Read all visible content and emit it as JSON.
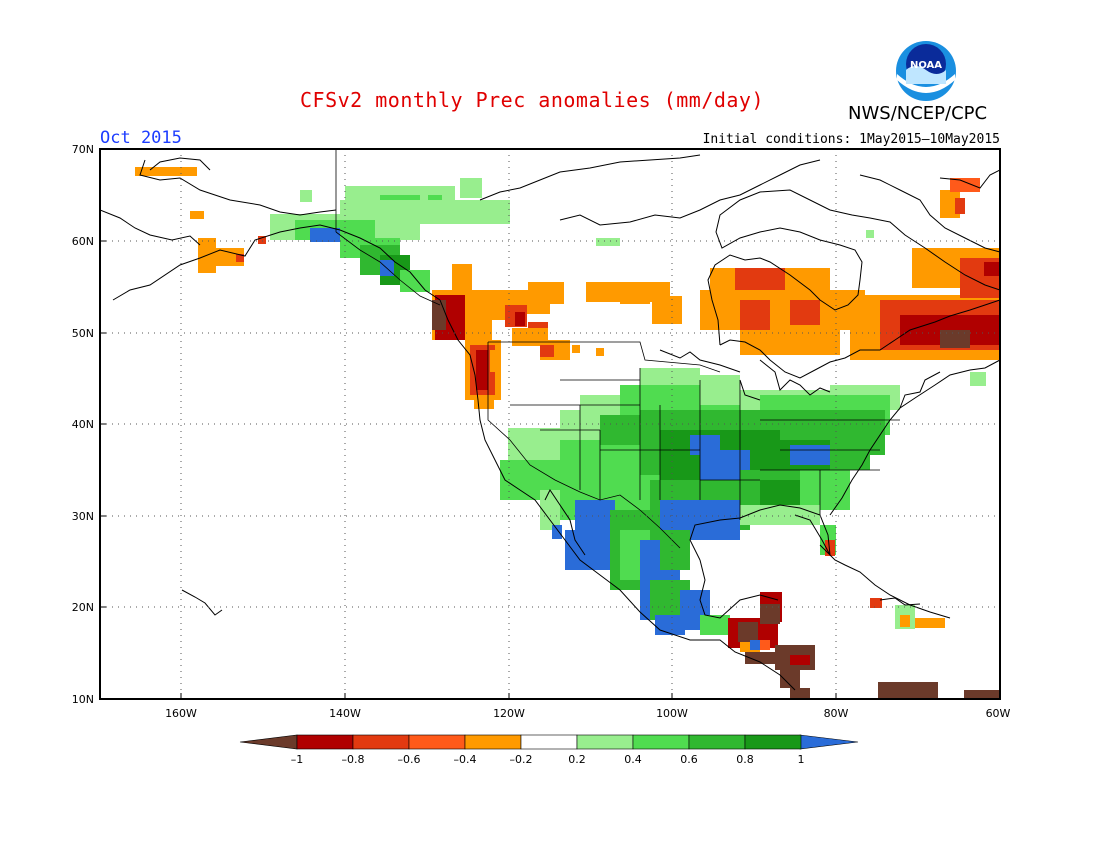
{
  "title": "CFSv2 monthly Prec anomalies (mm/day)",
  "period": "Oct 2015",
  "initial_conditions": "Initial conditions: 1May2015–10May2015",
  "agency": "NWS/NCEP/CPC",
  "logo_text": "NOAA",
  "colors": {
    "brown": "#6b3a2a",
    "darkred": "#b00000",
    "red": "#e23a10",
    "orangered": "#ff5a1a",
    "orange": "#ff9a00",
    "white": "#ffffff",
    "lightgreen": "#98ee8e",
    "green": "#50dc50",
    "midgreen": "#30b830",
    "darkgreen": "#189818",
    "blue": "#2a6cd8"
  },
  "map": {
    "lat_labels": [
      "70N",
      "60N",
      "50N",
      "40N",
      "30N",
      "20N",
      "10N"
    ],
    "lon_labels": [
      "160W",
      "140W",
      "120W",
      "100W",
      "80W",
      "60W"
    ]
  },
  "colorbar": {
    "labels": [
      "–1",
      "–0.8",
      "–0.6",
      "–0.4",
      "–0.2",
      "0.2",
      "0.4",
      "0.6",
      "0.8",
      "1"
    ],
    "colors": [
      "#b00000",
      "#e23a10",
      "#ff5a1a",
      "#ff9a00",
      "#ffffff",
      "#98ee8e",
      "#50dc50",
      "#30b830",
      "#189818"
    ],
    "under_color": "#6b3a2a",
    "over_color": "#2a6cd8"
  }
}
